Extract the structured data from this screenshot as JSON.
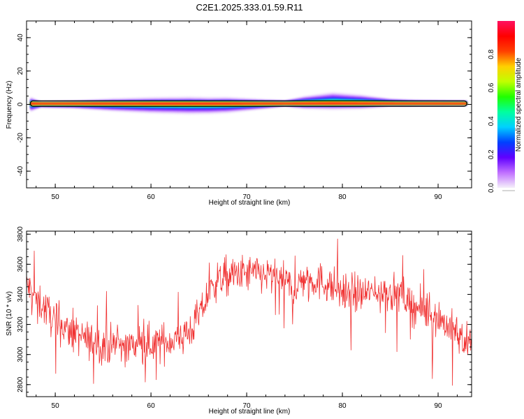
{
  "title": "C2E1.2025.333.01.59.R11",
  "colors": {
    "snr_line": "#f03030",
    "axis": "#000000",
    "background": "#ffffff"
  },
  "chart_data": [
    {
      "type": "heatmap",
      "panel": "spectrum",
      "xlabel": "Height of straight line (km)",
      "ylabel": "Frequency (Hz)",
      "xlim": [
        47,
        93.5
      ],
      "ylim": [
        -50,
        50
      ],
      "xticks": [
        50,
        60,
        70,
        80,
        90
      ],
      "yticks": [
        -40,
        -20,
        0,
        20,
        40
      ],
      "grid": false,
      "band": {
        "x_start": 47.4,
        "x_end": 93,
        "center_freq_hz": 0.5,
        "halfwidth_profile": [
          [
            47.5,
            4.0
          ],
          [
            48.5,
            1.5
          ],
          [
            52,
            2.0
          ],
          [
            56,
            3.5
          ],
          [
            60,
            4.5
          ],
          [
            64,
            5.0
          ],
          [
            68,
            4.5
          ],
          [
            72,
            2.5
          ],
          [
            74,
            1.5
          ],
          [
            76,
            3.5
          ],
          [
            79,
            5.0
          ],
          [
            82,
            4.0
          ],
          [
            85,
            2.0
          ],
          [
            88,
            1.5
          ],
          [
            93,
            1.2
          ]
        ],
        "center_offset_profile": [
          [
            47.5,
            -0.5
          ],
          [
            52,
            -0.5
          ],
          [
            60,
            -1.0
          ],
          [
            66,
            -1.2
          ],
          [
            72,
            -0.3
          ],
          [
            75,
            0.3
          ],
          [
            79,
            1.5
          ],
          [
            83,
            0.8
          ],
          [
            87,
            0.3
          ],
          [
            93,
            0.2
          ]
        ],
        "description": "Narrow band at ~0 Hz with peak normalized amplitude along center"
      },
      "colorbar": {
        "label": "Normalized spectral amplitude",
        "range": [
          0,
          1
        ],
        "ticks": [
          0.0,
          0.2,
          0.4,
          0.6,
          0.8
        ],
        "tick_labels": [
          "0.0",
          "0.2",
          "0.4",
          "0.6",
          "0.8"
        ],
        "colors": [
          "#f5f0fa",
          "#c070ff",
          "#6000ff",
          "#0040ff",
          "#00d0ff",
          "#00ffa0",
          "#20ff00",
          "#c0ff00",
          "#ffd000",
          "#ff4000",
          "#ff0000",
          "#ff1060"
        ]
      }
    },
    {
      "type": "line",
      "panel": "snr",
      "xlabel": "Height of straight line (km)",
      "ylabel": "SNR (10 * v/v)",
      "xlim": [
        47,
        93.5
      ],
      "ylim": [
        2720,
        3820
      ],
      "xticks": [
        50,
        60,
        70,
        80,
        90
      ],
      "yticks": [
        2800,
        3000,
        3200,
        3400,
        3600,
        3800
      ],
      "grid": false,
      "trend": [
        [
          47,
          3460
        ],
        [
          48,
          3380
        ],
        [
          50,
          3220
        ],
        [
          52,
          3130
        ],
        [
          54,
          3080
        ],
        [
          56,
          3060
        ],
        [
          58,
          3060
        ],
        [
          60,
          3070
        ],
        [
          62,
          3090
        ],
        [
          64,
          3150
        ],
        [
          65,
          3250
        ],
        [
          66,
          3400
        ],
        [
          67,
          3500
        ],
        [
          69,
          3530
        ],
        [
          71,
          3540
        ],
        [
          73,
          3510
        ],
        [
          74,
          3480
        ],
        [
          75,
          3430
        ],
        [
          76,
          3510
        ],
        [
          78,
          3480
        ],
        [
          80,
          3420
        ],
        [
          82,
          3400
        ],
        [
          84,
          3420
        ],
        [
          86,
          3400
        ],
        [
          88,
          3300
        ],
        [
          90,
          3250
        ],
        [
          91.5,
          3160
        ],
        [
          93.5,
          3060
        ]
      ],
      "noise_amplitude": 90,
      "sample_step_km": 0.05
    }
  ]
}
